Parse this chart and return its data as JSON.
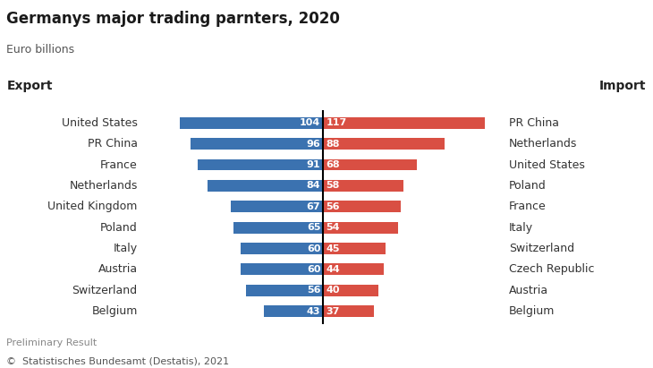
{
  "title": "Germanys major trading parnters, 2020",
  "subtitle": "Euro billions",
  "export_label": "Export",
  "import_label": "Import",
  "export_countries": [
    "United States",
    "PR China",
    "France",
    "Netherlands",
    "United Kingdom",
    "Poland",
    "Italy",
    "Austria",
    "Switzerland",
    "Belgium"
  ],
  "import_countries": [
    "PR China",
    "Netherlands",
    "United States",
    "Poland",
    "France",
    "Italy",
    "Switzerland",
    "Czech Republic",
    "Austria",
    "Belgium"
  ],
  "export_values": [
    104,
    96,
    91,
    84,
    67,
    65,
    60,
    60,
    56,
    43
  ],
  "import_values": [
    117,
    88,
    68,
    58,
    56,
    54,
    45,
    44,
    40,
    37
  ],
  "export_color": "#3b72b0",
  "import_color": "#d94f43",
  "background_color": "#ffffff",
  "footer_text": "Preliminary Result",
  "source_text": "©  Statistisches Bundesamt (Destatis), 2021",
  "bar_height": 0.55,
  "title_fontsize": 12,
  "subtitle_fontsize": 9,
  "label_fontsize": 9,
  "value_fontsize": 8,
  "header_fontsize": 10,
  "xlim": 130
}
